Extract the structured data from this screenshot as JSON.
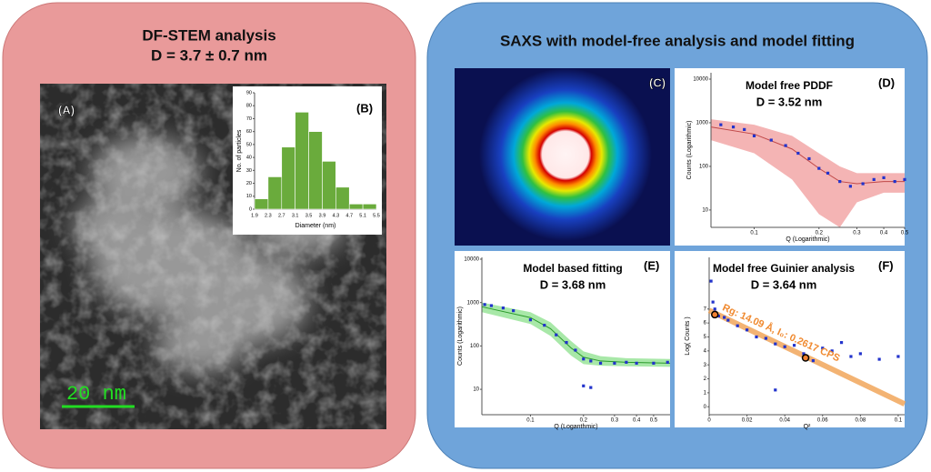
{
  "left_panel": {
    "title": "DF-STEM analysis",
    "subtitle": "D = 3.7 ± 0.7 nm",
    "image_label": "(A)",
    "scale_bar": "20 nm",
    "histogram": {
      "type": "histogram",
      "label": "(B)",
      "xlabel": "Diameter (nm)",
      "ylabel": "No. of particles",
      "color": "#6aab3c",
      "bins": [
        1.9,
        2.3,
        2.7,
        3.1,
        3.5,
        3.9,
        4.3,
        4.7,
        5.1,
        5.5
      ],
      "values": [
        8,
        25,
        48,
        75,
        60,
        37,
        17,
        4,
        4
      ],
      "ylim": [
        0,
        90
      ],
      "yticks": [
        0,
        10,
        20,
        30,
        40,
        50,
        60,
        70,
        80,
        90
      ]
    }
  },
  "right_panel": {
    "title": "SAXS with model-free analysis and model fitting",
    "pattern_label": "(C)",
    "charts": [
      {
        "type": "scatter",
        "label": "(D)",
        "title": "Model free PDDF",
        "subtitle": "D = 3.52 nm",
        "xlabel": "Q (Logarithmic)",
        "ylabel": "Counts (Logarithmic)",
        "log_x": true,
        "log_y": true,
        "xlim": [
          0.063,
          0.5
        ],
        "ylim": [
          4,
          14000
        ],
        "xticks": [
          0.1,
          0.2,
          0.3,
          0.4,
          0.5
        ],
        "yticks": [
          10,
          100,
          1000,
          10000
        ],
        "series": [
          {
            "color": "#2233cc",
            "x": [
              0.07,
              0.08,
              0.09,
              0.1,
              0.12,
              0.14,
              0.16,
              0.18,
              0.2,
              0.22,
              0.25,
              0.28,
              0.32,
              0.36,
              0.4,
              0.45,
              0.5
            ],
            "values": [
              900,
              800,
              700,
              500,
              400,
              300,
              200,
              150,
              90,
              70,
              45,
              35,
              40,
              50,
              55,
              45,
              50
            ]
          }
        ],
        "fit": {
          "color": "#c04848",
          "band_color": "#f4b4b4",
          "x": [
            0.063,
            0.1,
            0.15,
            0.2,
            0.25,
            0.3,
            0.4,
            0.5
          ],
          "values": [
            800,
            550,
            250,
            90,
            45,
            40,
            45,
            45
          ],
          "lower": [
            400,
            200,
            50,
            8,
            4,
            15,
            25,
            25
          ],
          "upper": [
            1200,
            900,
            500,
            200,
            100,
            70,
            70,
            70
          ]
        }
      },
      {
        "type": "scatter",
        "label": "(E)",
        "title": "Model based fitting",
        "subtitle": "D = 3.68 nm",
        "xlabel": "Q (Loganthmic)",
        "ylabel": "Counts (Logarithmic)",
        "log_x": true,
        "log_y": true,
        "xlim": [
          0.053,
          0.62
        ],
        "ylim": [
          2.6,
          11000
        ],
        "xticks": [
          0.1,
          0.2,
          0.3,
          0.4,
          0.5
        ],
        "yticks": [
          10,
          100,
          1000,
          10000
        ],
        "series": [
          {
            "color": "#2233cc",
            "x": [
              0.055,
              0.06,
              0.07,
              0.08,
              0.1,
              0.12,
              0.14,
              0.16,
              0.18,
              0.2,
              0.22,
              0.25,
              0.3,
              0.35,
              0.4,
              0.5,
              0.6,
              0.2,
              0.22
            ],
            "values": [
              900,
              850,
              750,
              650,
              400,
              300,
              180,
              120,
              80,
              50,
              45,
              40,
              40,
              42,
              40,
              40,
              42,
              12,
              11
            ]
          }
        ],
        "fit": {
          "color": "#2a9a2a",
          "band_color": "#a8e8a8",
          "x": [
            0.053,
            0.1,
            0.13,
            0.17,
            0.2,
            0.25,
            0.35,
            0.62
          ],
          "values": [
            800,
            450,
            250,
            90,
            55,
            45,
            42,
            40
          ],
          "lower": [
            600,
            320,
            170,
            60,
            38,
            35,
            34,
            33
          ],
          "upper": [
            1000,
            600,
            350,
            130,
            75,
            58,
            52,
            50
          ]
        }
      },
      {
        "type": "scatter",
        "label": "(F)",
        "title": "Model free Guinier analysis",
        "subtitle": "D = 3.64 nm",
        "xlabel": "Q²",
        "ylabel": "Log( Counts )",
        "annotation": "Rg: 14.09 Å, I₀: 0.2617 CPS",
        "log_x": false,
        "log_y": false,
        "xlim": [
          0,
          0.1034
        ],
        "ylim": [
          -0.57,
          10.7
        ],
        "xticks": [
          0,
          0.02,
          0.04,
          0.06,
          0.08,
          0.1
        ],
        "yticks": [
          0,
          1,
          2,
          3,
          4,
          5,
          6,
          7
        ],
        "series": [
          {
            "color": "#2233cc",
            "x": [
              0.001,
              0.002,
              0.003,
              0.005,
              0.008,
              0.01,
              0.015,
              0.02,
              0.025,
              0.03,
              0.035,
              0.04,
              0.045,
              0.05,
              0.055,
              0.06,
              0.065,
              0.07,
              0.075,
              0.08,
              0.09,
              0.1,
              0.035
            ],
            "values": [
              9,
              7.5,
              7,
              6.5,
              6.4,
              6.2,
              5.8,
              5.5,
              5,
              4.9,
              4.5,
              4.3,
              4.4,
              3.8,
              3.3,
              4.2,
              4,
              4.6,
              3.6,
              3.8,
              3.4,
              3.6,
              1.2
            ]
          }
        ],
        "fit": {
          "color": "#f0a050",
          "x": [
            0,
            0.1034
          ],
          "values": [
            6.9,
            0.2
          ]
        },
        "highlight": {
          "color": "#f08030",
          "x": [
            0.003,
            0.051
          ],
          "values": [
            6.6,
            3.5
          ]
        }
      }
    ]
  }
}
